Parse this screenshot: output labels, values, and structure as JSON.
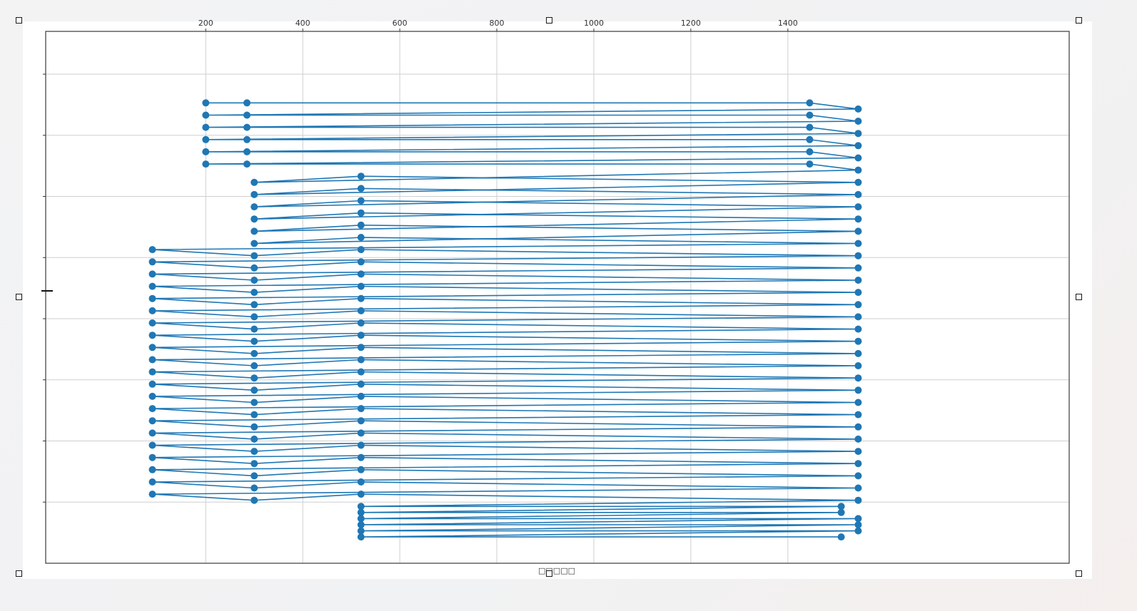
{
  "chart_data": {
    "type": "line",
    "title": "",
    "xlabel": "□□□□□",
    "ylabel": "",
    "xlim": [
      -130,
      1980
    ],
    "ylim": [
      8.0,
      -0.7
    ],
    "x_tick_labels": [
      "200",
      "400",
      "600",
      "800",
      "1000",
      "1200",
      "1400"
    ],
    "x_tick_values": [
      200,
      400,
      600,
      800,
      1000,
      1200,
      1400
    ],
    "y_tick_labels": [
      "",
      "",
      "",
      "",
      "",
      "",
      "",
      ""
    ],
    "y_tick_values": [
      0,
      1,
      2,
      3,
      4,
      5,
      6,
      7
    ],
    "grid": true,
    "marker": "o",
    "series": [
      {
        "name": "",
        "color": "#1f77b4",
        "points": [
          [
            200,
            0.47
          ],
          [
            285,
            0.47
          ],
          [
            1445,
            0.47
          ],
          [
            1545,
            0.57
          ],
          [
            200,
            0.67
          ],
          [
            285,
            0.67
          ],
          [
            1445,
            0.67
          ],
          [
            1545,
            0.77
          ],
          [
            200,
            0.87
          ],
          [
            285,
            0.87
          ],
          [
            1445,
            0.87
          ],
          [
            1545,
            0.97
          ],
          [
            200,
            1.07
          ],
          [
            285,
            1.07
          ],
          [
            1445,
            1.07
          ],
          [
            1545,
            1.17
          ],
          [
            200,
            1.27
          ],
          [
            285,
            1.27
          ],
          [
            1445,
            1.27
          ],
          [
            1545,
            1.37
          ],
          [
            200,
            1.47
          ],
          [
            285,
            1.47
          ],
          [
            1445,
            1.47
          ],
          [
            1545,
            1.57
          ],
          [
            300,
            1.77
          ],
          [
            520,
            1.67
          ],
          [
            1545,
            1.77
          ],
          [
            300,
            1.97
          ],
          [
            520,
            1.87
          ],
          [
            1545,
            1.97
          ],
          [
            300,
            2.17
          ],
          [
            520,
            2.07
          ],
          [
            1545,
            2.17
          ],
          [
            300,
            2.37
          ],
          [
            520,
            2.27
          ],
          [
            1545,
            2.37
          ],
          [
            300,
            2.57
          ],
          [
            520,
            2.47
          ],
          [
            1545,
            2.57
          ],
          [
            300,
            2.77
          ],
          [
            520,
            2.67
          ],
          [
            1545,
            2.77
          ],
          [
            90,
            2.87
          ],
          [
            300,
            2.97
          ],
          [
            520,
            2.87
          ],
          [
            1545,
            2.97
          ],
          [
            90,
            3.07
          ],
          [
            300,
            3.17
          ],
          [
            520,
            3.07
          ],
          [
            1545,
            3.17
          ],
          [
            90,
            3.27
          ],
          [
            300,
            3.37
          ],
          [
            520,
            3.27
          ],
          [
            1545,
            3.37
          ],
          [
            90,
            3.47
          ],
          [
            300,
            3.57
          ],
          [
            520,
            3.47
          ],
          [
            1545,
            3.57
          ],
          [
            90,
            3.67
          ],
          [
            300,
            3.77
          ],
          [
            520,
            3.67
          ],
          [
            1545,
            3.77
          ],
          [
            90,
            3.87
          ],
          [
            300,
            3.97
          ],
          [
            520,
            3.87
          ],
          [
            1545,
            3.97
          ],
          [
            90,
            4.07
          ],
          [
            300,
            4.17
          ],
          [
            520,
            4.07
          ],
          [
            1545,
            4.17
          ],
          [
            90,
            4.27
          ],
          [
            300,
            4.37
          ],
          [
            520,
            4.27
          ],
          [
            1545,
            4.37
          ],
          [
            90,
            4.47
          ],
          [
            300,
            4.57
          ],
          [
            520,
            4.47
          ],
          [
            1545,
            4.57
          ],
          [
            90,
            4.67
          ],
          [
            300,
            4.77
          ],
          [
            520,
            4.67
          ],
          [
            1545,
            4.77
          ],
          [
            90,
            4.87
          ],
          [
            300,
            4.97
          ],
          [
            520,
            4.87
          ],
          [
            1545,
            4.97
          ],
          [
            90,
            5.07
          ],
          [
            300,
            5.17
          ],
          [
            520,
            5.07
          ],
          [
            1545,
            5.17
          ],
          [
            90,
            5.27
          ],
          [
            300,
            5.37
          ],
          [
            520,
            5.27
          ],
          [
            1545,
            5.37
          ],
          [
            90,
            5.47
          ],
          [
            300,
            5.57
          ],
          [
            520,
            5.47
          ],
          [
            1545,
            5.57
          ],
          [
            90,
            5.67
          ],
          [
            300,
            5.77
          ],
          [
            520,
            5.67
          ],
          [
            1545,
            5.77
          ],
          [
            90,
            5.87
          ],
          [
            300,
            5.97
          ],
          [
            520,
            5.87
          ],
          [
            1545,
            5.97
          ],
          [
            90,
            6.07
          ],
          [
            300,
            6.17
          ],
          [
            520,
            6.07
          ],
          [
            1545,
            6.17
          ],
          [
            90,
            6.27
          ],
          [
            300,
            6.37
          ],
          [
            520,
            6.27
          ],
          [
            1545,
            6.37
          ],
          [
            90,
            6.47
          ],
          [
            300,
            6.57
          ],
          [
            520,
            6.47
          ],
          [
            1545,
            6.57
          ],
          [
            90,
            6.67
          ],
          [
            300,
            6.77
          ],
          [
            520,
            6.67
          ],
          [
            1545,
            6.77
          ],
          [
            90,
            6.87
          ],
          [
            300,
            6.97
          ],
          [
            520,
            6.87
          ],
          [
            1545,
            6.97
          ],
          [
            520,
            7.07
          ],
          [
            1510,
            7.07
          ],
          [
            520,
            7.17
          ],
          [
            1510,
            7.17
          ],
          [
            520,
            7.27
          ],
          [
            1545,
            7.27
          ],
          [
            520,
            7.37
          ],
          [
            1545,
            7.37
          ],
          [
            520,
            7.47
          ],
          [
            1545,
            7.47
          ],
          [
            520,
            7.57
          ],
          [
            1510,
            7.57
          ]
        ]
      }
    ]
  }
}
